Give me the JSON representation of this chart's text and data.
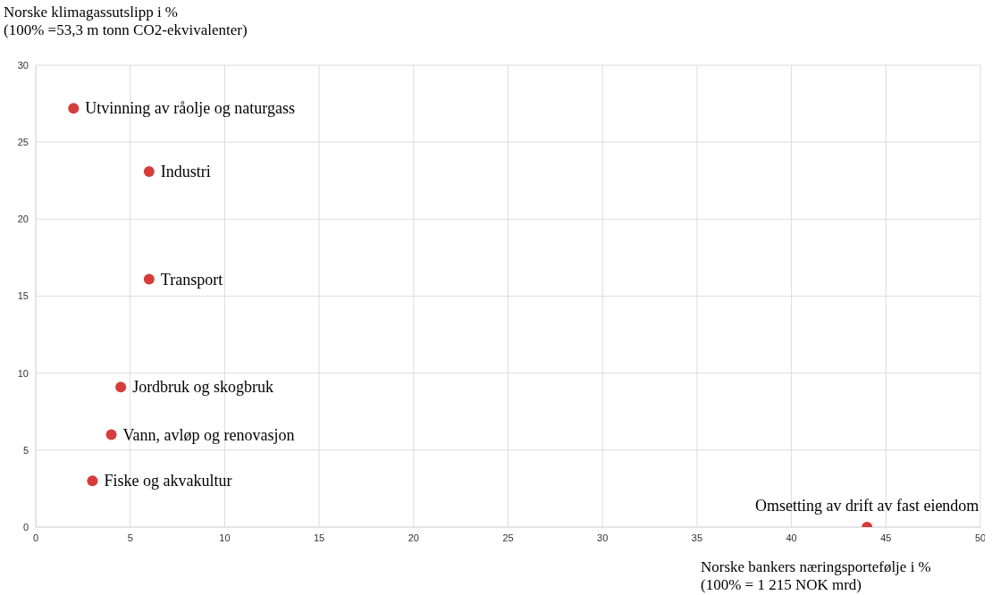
{
  "chart_data": {
    "type": "scatter",
    "ylabel": "Norske klimagassutslipp i %\n(100% =53,3 m tonn CO2-ekvivalenter)",
    "xlabel": "Norske bankers næringsportefølje i %\n(100% = 1 215 NOK mrd)",
    "x": [
      2,
      6,
      6,
      4.5,
      4,
      3,
      44
    ],
    "series": [
      {
        "color": "#d63c3c",
        "values": [
          27.2,
          23.1,
          16.1,
          9.1,
          6,
          3,
          0
        ]
      }
    ],
    "annotations": [
      {
        "text": "Utvinning av råolje og naturgass",
        "x": 2,
        "y": 27.2
      },
      {
        "text": "Industri",
        "x": 6,
        "y": 23.1
      },
      {
        "text": "Transport",
        "x": 6,
        "y": 16.1
      },
      {
        "text": "Jordbruk og skogbruk",
        "x": 4.5,
        "y": 9.1
      },
      {
        "text": "Vann, avløp og renovasjon",
        "x": 4,
        "y": 6
      },
      {
        "text": "Fiske og akvakultur",
        "x": 3,
        "y": 3
      },
      {
        "text": "Omsetting av drift av fast eiendom",
        "x": 44,
        "y": 0
      }
    ],
    "xlim": [
      0,
      50
    ],
    "xticks": [
      0,
      5,
      10,
      15,
      20,
      25,
      30,
      35,
      40,
      45,
      50
    ],
    "ylim": [
      0,
      30
    ],
    "yticks": [
      0,
      5,
      10,
      15,
      20,
      25,
      30
    ],
    "grid": true,
    "marker": "circle",
    "legend": false
  }
}
